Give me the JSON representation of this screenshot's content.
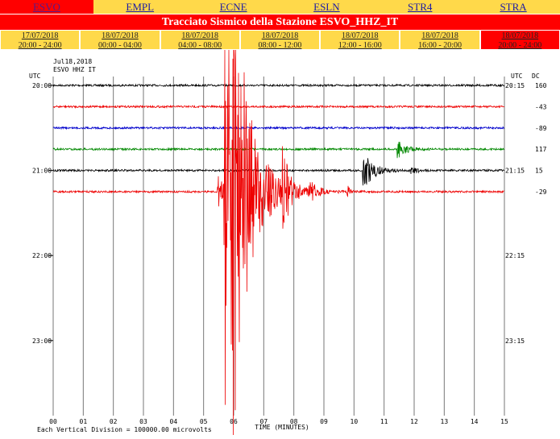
{
  "tabs": [
    "ESVO",
    "EMPL",
    "ECNE",
    "ESLN",
    "STR4",
    "STRA"
  ],
  "title": "Tracciato Sismico della Stazione ESVO_HHZ_IT",
  "periods": [
    {
      "date": "17/07/2018",
      "time": "20:00 - 24:00"
    },
    {
      "date": "18/07/2018",
      "time": "00:00 - 04:00"
    },
    {
      "date": "18/07/2018",
      "time": "04:00 - 08:00"
    },
    {
      "date": "18/07/2018",
      "time": "08:00 - 12:00"
    },
    {
      "date": "18/07/2018",
      "time": "12:00 - 16:00"
    },
    {
      "date": "18/07/2018",
      "time": "16:00 - 20:00"
    },
    {
      "date": "18/07/2018",
      "time": "20:00 - 24:00"
    }
  ],
  "plot": {
    "header": [
      "Jul18,2018",
      "ESVO HHZ IT"
    ],
    "left_label": "UTC",
    "right_label": "UTC",
    "dc_label": "DC",
    "left_times": [
      "20:00",
      "21:00",
      "22:00",
      "23:00"
    ],
    "right_times": [
      "20:15",
      "21:15",
      "22:15",
      "23:15"
    ],
    "dc_values": [
      160,
      -43,
      -89,
      117,
      15,
      -29
    ],
    "minutes": [
      "00",
      "01",
      "02",
      "03",
      "04",
      "05",
      "06",
      "07",
      "08",
      "09",
      "10",
      "11",
      "12",
      "13",
      "14",
      "15"
    ],
    "x_label": "TIME (MINUTES)",
    "footnote": "Each Vertical Division = 100000.00 microvolts"
  }
}
